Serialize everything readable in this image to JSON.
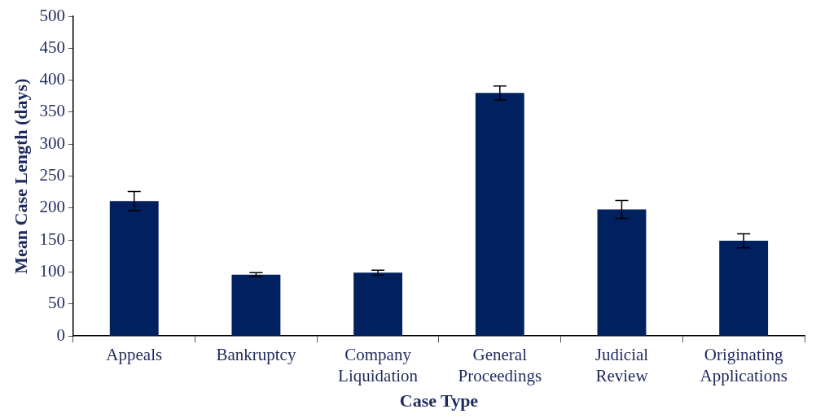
{
  "chart_data": {
    "type": "bar",
    "xlabel": "Case Type",
    "ylabel": "Mean Case Length (days)",
    "categories": [
      "Appeals",
      "Bankruptcy",
      "Company Liquidation",
      "General Proceedings",
      "Judicial Review",
      "Originating Applications"
    ],
    "values": [
      211,
      96,
      99,
      380,
      198,
      149
    ],
    "errors": [
      15,
      3,
      4,
      11,
      14,
      11
    ],
    "color": "#002060",
    "ylim": [
      0,
      500
    ],
    "yticks": [
      0,
      50,
      100,
      150,
      200,
      250,
      300,
      350,
      400,
      450,
      500
    ],
    "grid": false,
    "legend": false
  }
}
